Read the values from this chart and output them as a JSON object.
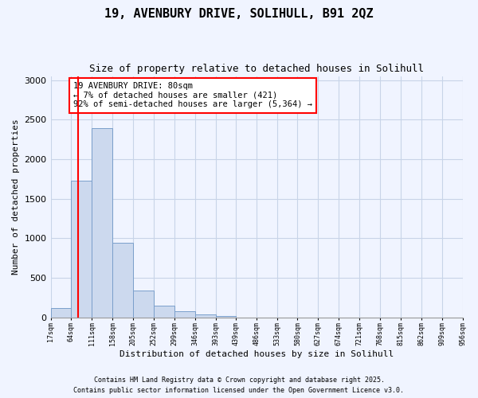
{
  "title": "19, AVENBURY DRIVE, SOLIHULL, B91 2QZ",
  "subtitle": "Size of property relative to detached houses in Solihull",
  "xlabel": "Distribution of detached houses by size in Solihull",
  "ylabel": "Number of detached properties",
  "bar_color": "#ccd9ee",
  "bar_edge_color": "#7a9fcb",
  "bins": [
    17,
    64,
    111,
    158,
    205,
    252,
    299,
    346,
    393,
    439,
    486,
    533,
    580,
    627,
    674,
    721,
    768,
    815,
    862,
    909,
    956
  ],
  "bin_labels": [
    "17sqm",
    "64sqm",
    "111sqm",
    "158sqm",
    "205sqm",
    "252sqm",
    "299sqm",
    "346sqm",
    "393sqm",
    "439sqm",
    "486sqm",
    "533sqm",
    "580sqm",
    "627sqm",
    "674sqm",
    "721sqm",
    "768sqm",
    "815sqm",
    "862sqm",
    "909sqm",
    "956sqm"
  ],
  "values": [
    115,
    1730,
    2390,
    940,
    340,
    150,
    80,
    40,
    20,
    0,
    0,
    0,
    0,
    0,
    0,
    0,
    0,
    0,
    0,
    0
  ],
  "property_line_x": 80,
  "annotation_title": "19 AVENBURY DRIVE: 80sqm",
  "annotation_line1": "← 7% of detached houses are smaller (421)",
  "annotation_line2": "92% of semi-detached houses are larger (5,364) →",
  "annotation_box_color": "white",
  "annotation_box_edge_color": "red",
  "vline_color": "red",
  "ylim": [
    0,
    3050
  ],
  "xlim": [
    17,
    956
  ],
  "footnote1": "Contains HM Land Registry data © Crown copyright and database right 2025.",
  "footnote2": "Contains public sector information licensed under the Open Government Licence v3.0.",
  "bg_color": "#f0f4ff",
  "grid_color": "#c8d4e8"
}
